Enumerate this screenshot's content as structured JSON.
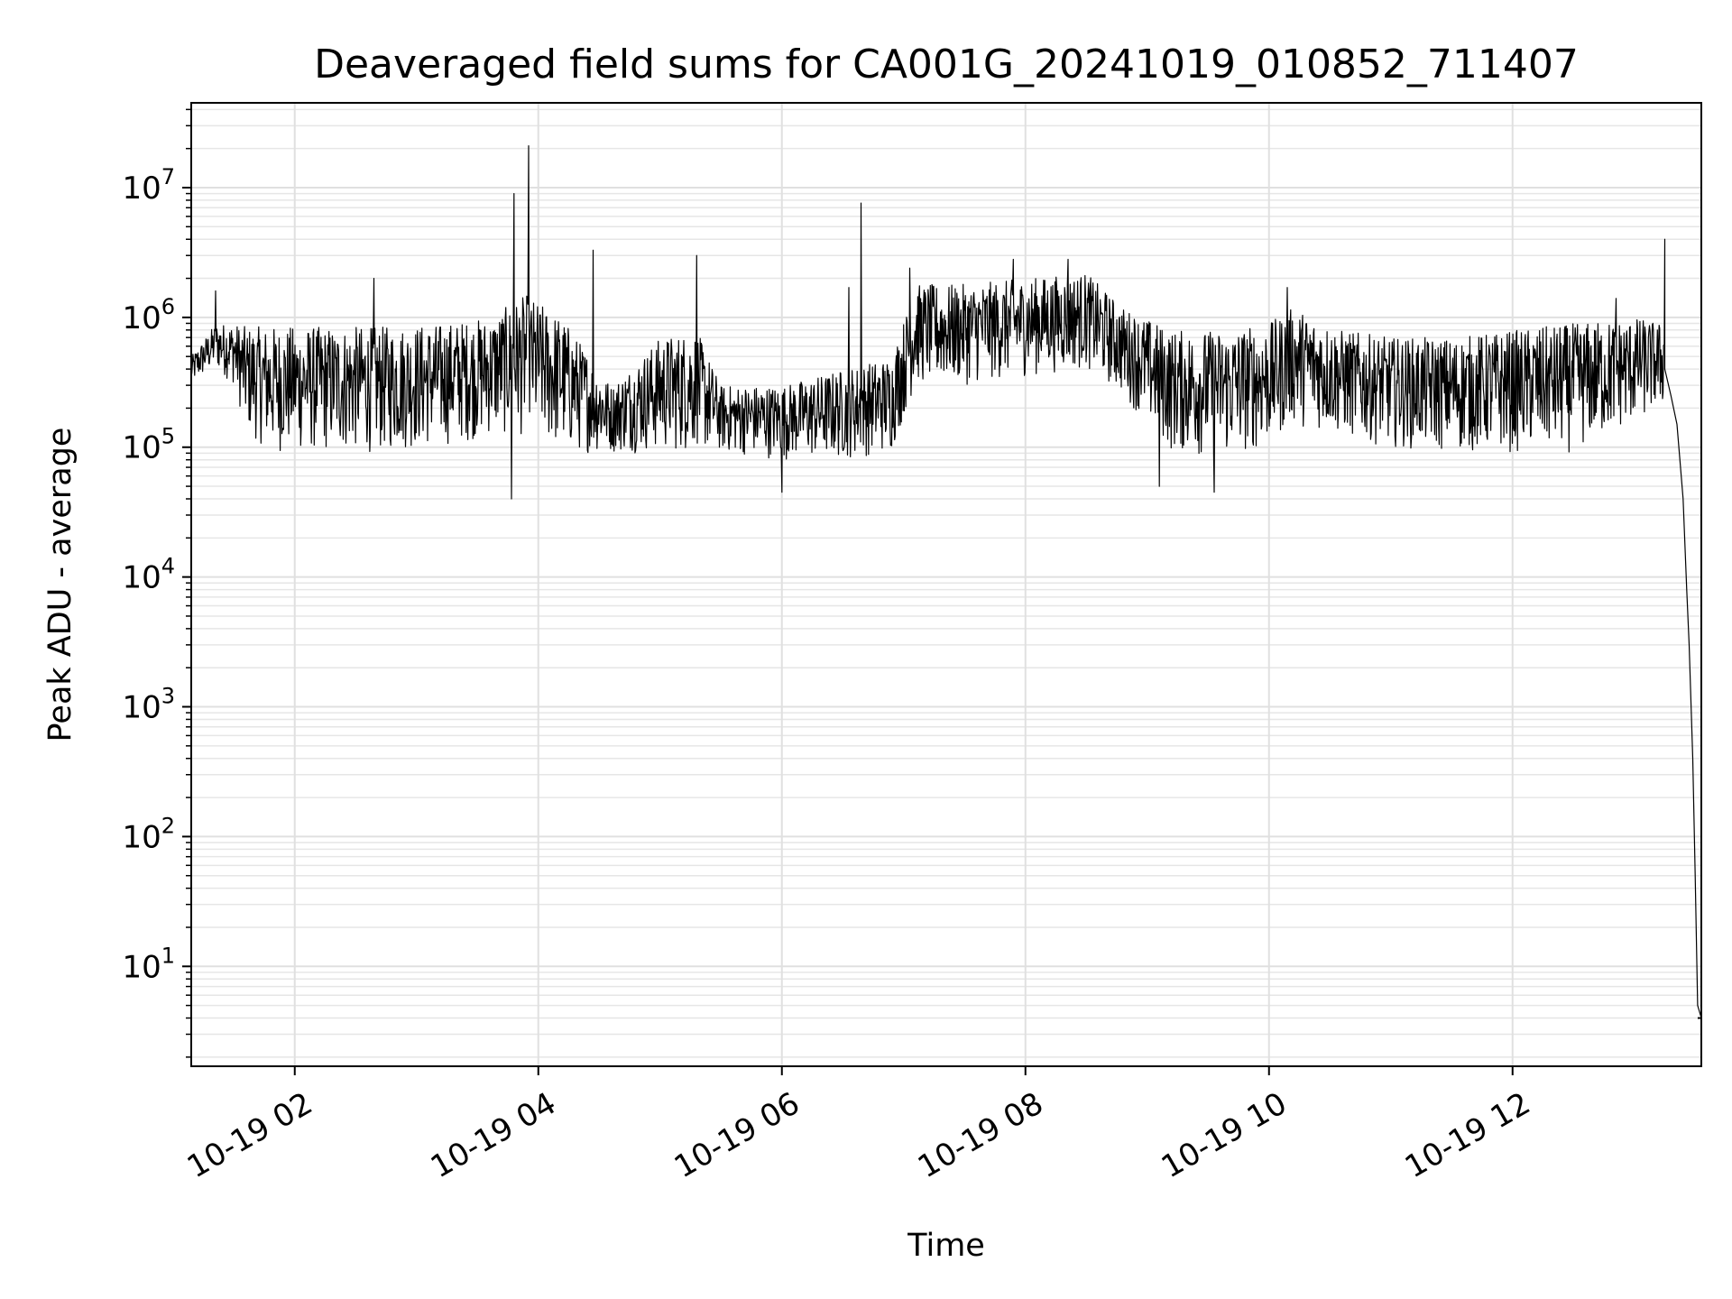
{
  "chart_data": {
    "type": "line",
    "title": "Deaveraged field sums for CA001G_20241019_010852_711407",
    "xlabel": "Time",
    "ylabel": "Peak ADU - average",
    "yscale": "log",
    "grid": true,
    "legend": "none",
    "x_range_hours": [
      1.15,
      13.55
    ],
    "ylim": [
      1.7,
      45000000
    ],
    "x_ticks": [
      {
        "label": "10-19 02",
        "hour": 2
      },
      {
        "label": "10-19 04",
        "hour": 4
      },
      {
        "label": "10-19 06",
        "hour": 6
      },
      {
        "label": "10-19 08",
        "hour": 8
      },
      {
        "label": "10-19 10",
        "hour": 10
      },
      {
        "label": "10-19 12",
        "hour": 12
      }
    ],
    "y_ticks": [
      {
        "base": "10",
        "exp": "1",
        "value": 10
      },
      {
        "base": "10",
        "exp": "2",
        "value": 100
      },
      {
        "base": "10",
        "exp": "3",
        "value": 1000
      },
      {
        "base": "10",
        "exp": "4",
        "value": 10000
      },
      {
        "base": "10",
        "exp": "5",
        "value": 100000
      },
      {
        "base": "10",
        "exp": "6",
        "value": 1000000
      },
      {
        "base": "10",
        "exp": "7",
        "value": 10000000
      }
    ],
    "series_color": "#000000",
    "envelope": [
      {
        "hour": 1.15,
        "low": 300000,
        "high": 500000
      },
      {
        "hour": 1.35,
        "low": 400000,
        "high": 900000
      },
      {
        "hour": 1.5,
        "low": 300000,
        "high": 900000
      },
      {
        "hour": 1.6,
        "low": 130000,
        "high": 850000
      },
      {
        "hour": 1.8,
        "low": 90000,
        "high": 850000
      },
      {
        "hour": 2.2,
        "low": 90000,
        "high": 850000
      },
      {
        "hour": 2.7,
        "low": 90000,
        "high": 850000
      },
      {
        "hour": 3.2,
        "low": 100000,
        "high": 900000
      },
      {
        "hour": 3.6,
        "low": 120000,
        "high": 1000000
      },
      {
        "hour": 3.9,
        "low": 120000,
        "high": 1500000
      },
      {
        "hour": 4.2,
        "low": 90000,
        "high": 1000000
      },
      {
        "hour": 4.6,
        "low": 90000,
        "high": 300000
      },
      {
        "hour": 5.0,
        "low": 90000,
        "high": 700000
      },
      {
        "hour": 5.3,
        "low": 90000,
        "high": 800000
      },
      {
        "hour": 5.5,
        "low": 90000,
        "high": 300000
      },
      {
        "hour": 6.0,
        "low": 80000,
        "high": 300000
      },
      {
        "hour": 6.5,
        "low": 80000,
        "high": 400000
      },
      {
        "hour": 6.9,
        "low": 90000,
        "high": 500000
      },
      {
        "hour": 7.1,
        "low": 300000,
        "high": 1800000
      },
      {
        "hour": 7.5,
        "low": 300000,
        "high": 1800000
      },
      {
        "hour": 8.0,
        "low": 350000,
        "high": 2000000
      },
      {
        "hour": 8.5,
        "low": 400000,
        "high": 2200000
      },
      {
        "hour": 8.8,
        "low": 250000,
        "high": 1200000
      },
      {
        "hour": 9.2,
        "low": 90000,
        "high": 800000
      },
      {
        "hour": 9.6,
        "low": 80000,
        "high": 800000
      },
      {
        "hour": 10.0,
        "low": 100000,
        "high": 900000
      },
      {
        "hour": 10.2,
        "low": 150000,
        "high": 1200000
      },
      {
        "hour": 10.6,
        "low": 120000,
        "high": 800000
      },
      {
        "hour": 11.0,
        "low": 100000,
        "high": 700000
      },
      {
        "hour": 11.5,
        "low": 90000,
        "high": 700000
      },
      {
        "hour": 12.0,
        "low": 90000,
        "high": 800000
      },
      {
        "hour": 12.5,
        "low": 90000,
        "high": 900000
      },
      {
        "hour": 13.0,
        "low": 150000,
        "high": 1000000
      },
      {
        "hour": 13.25,
        "low": 200000,
        "high": 900000
      }
    ],
    "spikes": [
      {
        "hour": 1.35,
        "value": 1600000
      },
      {
        "hour": 3.8,
        "value": 9000000
      },
      {
        "hour": 3.92,
        "value": 21000000
      },
      {
        "hour": 3.78,
        "value": 40000
      },
      {
        "hour": 4.45,
        "value": 3300000
      },
      {
        "hour": 5.3,
        "value": 3000000
      },
      {
        "hour": 6.55,
        "value": 1700000
      },
      {
        "hour": 6.65,
        "value": 7600000
      },
      {
        "hour": 7.05,
        "value": 2400000
      },
      {
        "hour": 7.9,
        "value": 2800000
      },
      {
        "hour": 8.35,
        "value": 2800000
      },
      {
        "hour": 10.15,
        "value": 1700000
      },
      {
        "hour": 12.85,
        "value": 1400000
      },
      {
        "hour": 13.25,
        "value": 4000000
      },
      {
        "hour": 2.65,
        "value": 2000000
      },
      {
        "hour": 9.1,
        "value": 50000
      },
      {
        "hour": 9.55,
        "value": 45000
      },
      {
        "hour": 6.0,
        "value": 45000
      }
    ],
    "tail": [
      {
        "hour": 13.25,
        "value": 400000
      },
      {
        "hour": 13.3,
        "value": 250000
      },
      {
        "hour": 13.35,
        "value": 150000
      },
      {
        "hour": 13.4,
        "value": 40000
      },
      {
        "hour": 13.43,
        "value": 8000
      },
      {
        "hour": 13.45,
        "value": 3000
      },
      {
        "hour": 13.48,
        "value": 400
      },
      {
        "hour": 13.5,
        "value": 50
      },
      {
        "hour": 13.52,
        "value": 5
      },
      {
        "hour": 13.55,
        "value": 4
      }
    ]
  }
}
